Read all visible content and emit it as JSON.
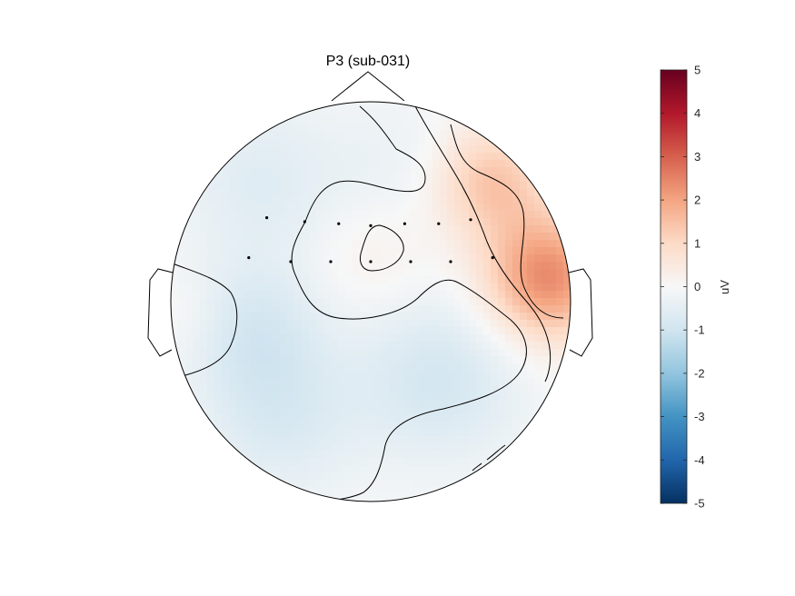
{
  "chart_data": {
    "type": "heatmap",
    "subtype": "scalp-topography",
    "title": "P3 (sub-031)",
    "colorbar": {
      "label": "uV",
      "range": [
        -5,
        5
      ],
      "ticks": [
        5,
        4,
        3,
        2,
        1,
        0,
        -1,
        -2,
        -3,
        -4,
        -5
      ],
      "colormap": [
        "#053061",
        "#2166ac",
        "#4393c3",
        "#92c5de",
        "#d1e5f0",
        "#f7f7f7",
        "#fddbc7",
        "#f4a582",
        "#d6604d",
        "#b2182b",
        "#67001f"
      ]
    },
    "electrodes": [
      {
        "label": "",
        "x": -0.52,
        "y": 0.42
      },
      {
        "label": "",
        "x": -0.33,
        "y": 0.4
      },
      {
        "label": "",
        "x": -0.16,
        "y": 0.39
      },
      {
        "label": "",
        "x": 0.0,
        "y": 0.38
      },
      {
        "label": "",
        "x": 0.17,
        "y": 0.39
      },
      {
        "label": "",
        "x": 0.34,
        "y": 0.39
      },
      {
        "label": "",
        "x": 0.5,
        "y": 0.41
      },
      {
        "label": "",
        "x": -0.61,
        "y": 0.22
      },
      {
        "label": "",
        "x": -0.4,
        "y": 0.2
      },
      {
        "label": "",
        "x": -0.2,
        "y": 0.2
      },
      {
        "label": "",
        "x": 0.0,
        "y": 0.2
      },
      {
        "label": "",
        "x": 0.2,
        "y": 0.2
      },
      {
        "label": "",
        "x": 0.4,
        "y": 0.2
      },
      {
        "label": "",
        "x": 0.61,
        "y": 0.22
      }
    ],
    "field_sources": [
      {
        "x": 0.88,
        "y": 0.12,
        "value": 2.4,
        "spread": 0.22
      },
      {
        "x": 0.6,
        "y": 0.6,
        "value": 1.4,
        "spread": 0.2
      },
      {
        "x": 0.0,
        "y": 0.22,
        "value": 0.3,
        "spread": 0.2
      },
      {
        "x": -0.92,
        "y": -0.08,
        "value": 0.2,
        "spread": 0.14
      },
      {
        "x": -0.55,
        "y": 0.6,
        "value": -0.6,
        "spread": 0.3
      },
      {
        "x": -0.58,
        "y": -0.15,
        "value": -0.8,
        "spread": 0.25
      },
      {
        "x": 0.35,
        "y": -0.38,
        "value": -0.9,
        "spread": 0.3
      },
      {
        "x": -0.45,
        "y": -0.6,
        "value": -0.7,
        "spread": 0.28
      },
      {
        "x": 0.15,
        "y": 0.7,
        "value": -0.3,
        "spread": 0.25
      }
    ]
  }
}
